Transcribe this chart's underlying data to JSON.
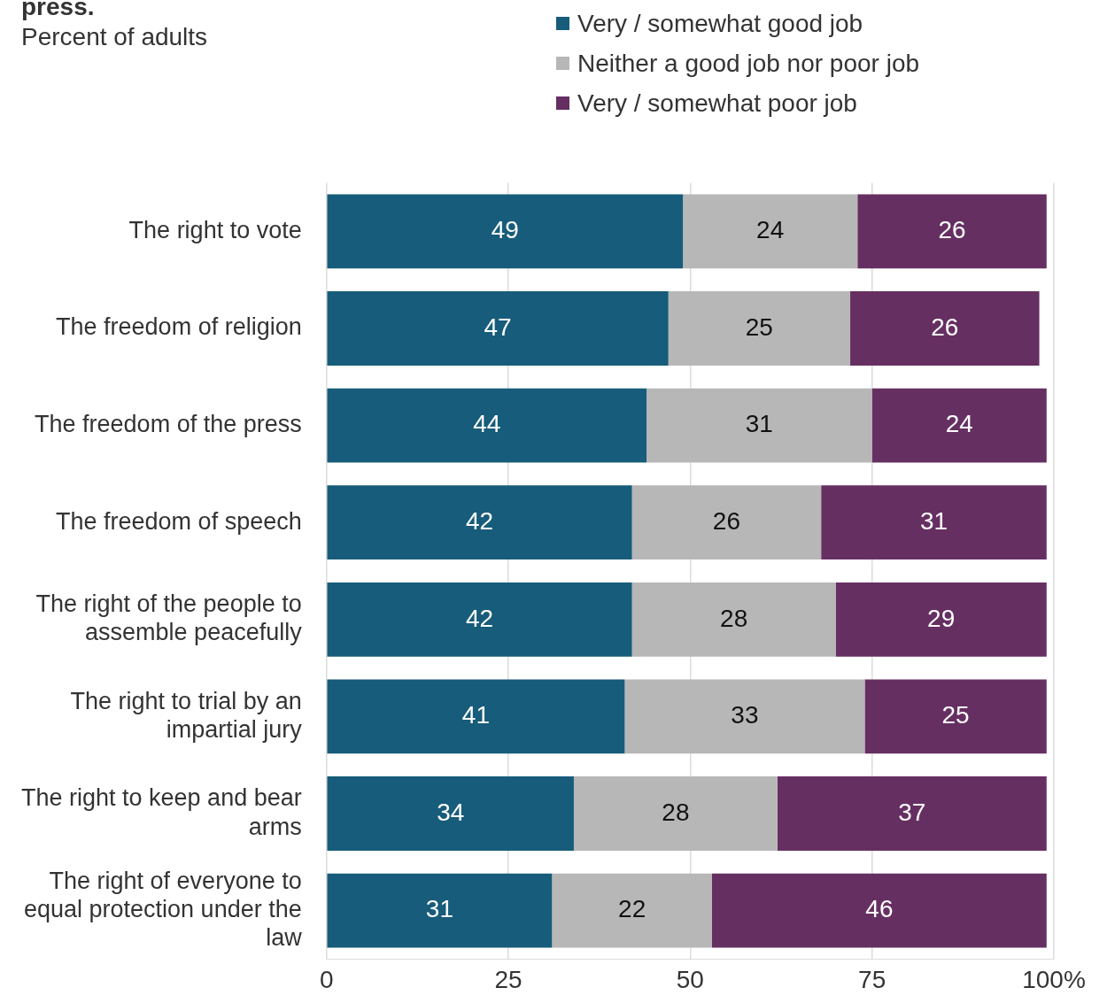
{
  "chart_data": {
    "type": "bar",
    "orientation": "horizontal",
    "stacked": true,
    "title": "press.",
    "subtitle": "Percent of adults",
    "categories": [
      "The right to vote",
      "The freedom of religion",
      "The freedom of the press",
      "The freedom of speech",
      "The right of the people to assemble peacefully",
      "The right to trial by an impartial jury",
      "The right to keep and bear arms",
      "The right of everyone to equal protection under the law"
    ],
    "series": [
      {
        "name": "Very / somewhat good job",
        "color": "#175c7a",
        "values": [
          49,
          47,
          44,
          42,
          42,
          41,
          34,
          31
        ]
      },
      {
        "name": "Neither a good job nor poor job",
        "color": "#b7b7b7",
        "values": [
          24,
          25,
          31,
          26,
          28,
          33,
          28,
          22
        ]
      },
      {
        "name": "Very / somewhat poor job",
        "color": "#662f62",
        "values": [
          26,
          26,
          24,
          31,
          29,
          25,
          37,
          46
        ]
      }
    ],
    "xlim": [
      0,
      100
    ],
    "xticks": [
      0,
      25,
      50,
      75,
      {
        "value": 100,
        "label": "100%"
      }
    ],
    "grid": "x",
    "legend": "top",
    "data_labels": true
  }
}
